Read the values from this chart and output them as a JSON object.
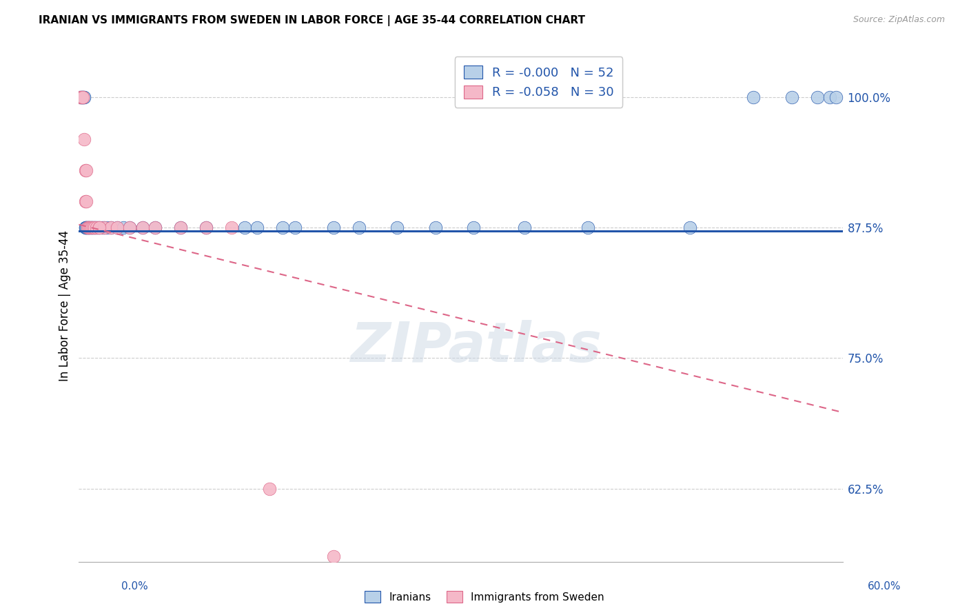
{
  "title": "IRANIAN VS IMMIGRANTS FROM SWEDEN IN LABOR FORCE | AGE 35-44 CORRELATION CHART",
  "source": "Source: ZipAtlas.com",
  "ylabel": "In Labor Force | Age 35-44",
  "ytick_labels": [
    "62.5%",
    "75.0%",
    "87.5%",
    "100.0%"
  ],
  "ytick_values": [
    0.625,
    0.75,
    0.875,
    1.0
  ],
  "xmin": 0.0,
  "xmax": 0.6,
  "ymin": 0.555,
  "ymax": 1.045,
  "legend_label_blue": "R = -0.000   N = 52",
  "legend_label_pink": "R = -0.058   N = 30",
  "legend_bottom_blue": "Iranians",
  "legend_bottom_pink": "Immigrants from Sweden",
  "blue_color": "#b8d0e8",
  "pink_color": "#f5b8c8",
  "trend_blue_color": "#2255aa",
  "trend_pink_color": "#dd6688",
  "watermark": "ZIPatlas",
  "blue_trend_y0": 0.872,
  "blue_trend_y1": 0.872,
  "pink_trend_y0": 0.878,
  "pink_trend_y1": 0.698,
  "iranians_x": [
    0.001,
    0.002,
    0.002,
    0.003,
    0.003,
    0.004,
    0.004,
    0.005,
    0.005,
    0.006,
    0.006,
    0.007,
    0.007,
    0.008,
    0.008,
    0.009,
    0.01,
    0.01,
    0.011,
    0.012,
    0.013,
    0.014,
    0.015,
    0.016,
    0.018,
    0.02,
    0.022,
    0.025,
    0.03,
    0.035,
    0.04,
    0.05,
    0.06,
    0.08,
    0.1,
    0.13,
    0.16,
    0.2,
    0.25,
    0.31,
    0.35,
    0.4,
    0.48,
    0.53,
    0.56,
    0.58,
    0.59,
    0.595,
    0.14,
    0.17,
    0.22,
    0.28
  ],
  "iranians_y": [
    1.0,
    1.0,
    1.0,
    1.0,
    1.0,
    1.0,
    1.0,
    0.875,
    0.875,
    0.875,
    0.875,
    0.875,
    0.875,
    0.875,
    0.875,
    0.875,
    0.875,
    0.875,
    0.875,
    0.875,
    0.875,
    0.875,
    0.875,
    0.875,
    0.875,
    0.875,
    0.875,
    0.875,
    0.875,
    0.875,
    0.875,
    0.875,
    0.875,
    0.875,
    0.875,
    0.875,
    0.875,
    0.875,
    0.875,
    0.875,
    0.875,
    0.875,
    0.875,
    1.0,
    1.0,
    1.0,
    1.0,
    1.0,
    0.875,
    0.875,
    0.875,
    0.875
  ],
  "sweden_x": [
    0.001,
    0.002,
    0.003,
    0.003,
    0.004,
    0.005,
    0.005,
    0.006,
    0.006,
    0.007,
    0.008,
    0.008,
    0.009,
    0.01,
    0.011,
    0.012,
    0.014,
    0.016,
    0.02,
    0.025,
    0.03,
    0.04,
    0.05,
    0.06,
    0.08,
    0.1,
    0.12,
    0.15,
    0.2,
    0.016
  ],
  "sweden_y": [
    1.0,
    1.0,
    1.0,
    1.0,
    0.96,
    0.93,
    0.9,
    0.93,
    0.9,
    0.875,
    0.875,
    0.875,
    0.875,
    0.875,
    0.875,
    0.875,
    0.875,
    0.875,
    0.875,
    0.875,
    0.875,
    0.875,
    0.875,
    0.875,
    0.875,
    0.875,
    0.875,
    0.625,
    0.56,
    0.875
  ]
}
